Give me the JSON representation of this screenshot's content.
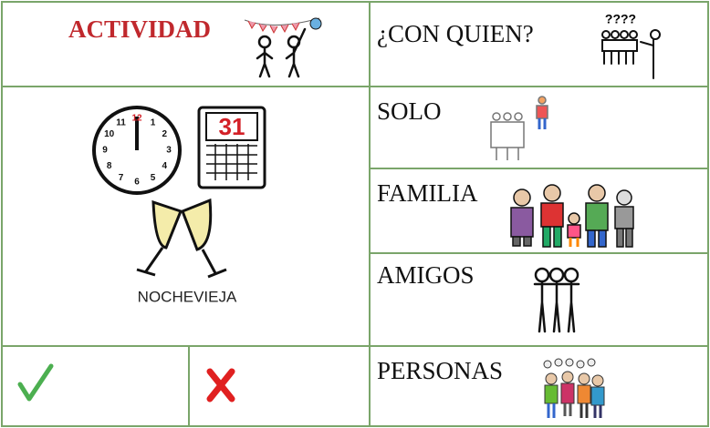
{
  "header": {
    "activity": "ACTIVIDAD",
    "with_whom": "¿CON QUIEN?",
    "question_marks": "????"
  },
  "activity": {
    "label": "NOCHEVIEJA",
    "calendar_day": "31",
    "clock_numbers": [
      "12",
      "1",
      "2",
      "3",
      "4",
      "5",
      "6",
      "7",
      "8",
      "9",
      "10",
      "11"
    ]
  },
  "options": [
    "SOLO",
    "FAMILIA",
    "AMIGOS",
    "PERSONAS"
  ]
}
